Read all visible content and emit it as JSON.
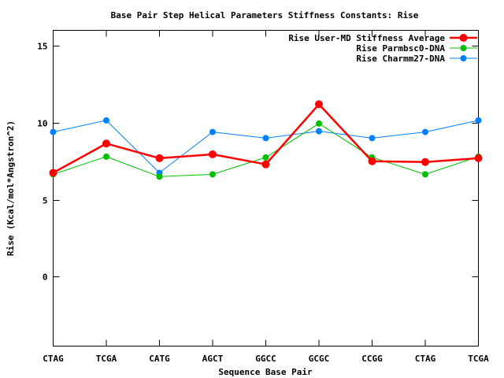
{
  "chart_data": {
    "type": "line",
    "title": "Base Pair Step Helical Parameters Stiffness Constants: Rise",
    "xlabel": "Sequence Base Pair",
    "ylabel": "Rise (Kcal/mol*Angstron^2)",
    "ylim": [
      -4.5,
      16
    ],
    "yticks": [
      0,
      5,
      10,
      15
    ],
    "grid": false,
    "legend": "top-right",
    "categories": [
      "CTAG",
      "TCGA",
      "CATG",
      "AGCT",
      "GGCC",
      "GCGC",
      "CCGG",
      "CTAG",
      "TCGA"
    ],
    "series": [
      {
        "name": "Rise User-MD Stiffness Average",
        "color": "#ff0000",
        "values": [
          6.75,
          8.65,
          7.7,
          7.95,
          7.3,
          11.2,
          7.5,
          7.45,
          7.7
        ]
      },
      {
        "name": "Rise Parmbsc0-DNA",
        "color": "#00c000",
        "values": [
          6.65,
          7.8,
          6.5,
          6.65,
          7.75,
          9.95,
          7.75,
          6.65,
          7.8
        ]
      },
      {
        "name": "Rise Charmm27-DNA",
        "color": "#0080ff",
        "values": [
          9.4,
          10.15,
          6.75,
          9.4,
          9.0,
          9.45,
          9.0,
          9.4,
          10.15
        ]
      }
    ]
  }
}
